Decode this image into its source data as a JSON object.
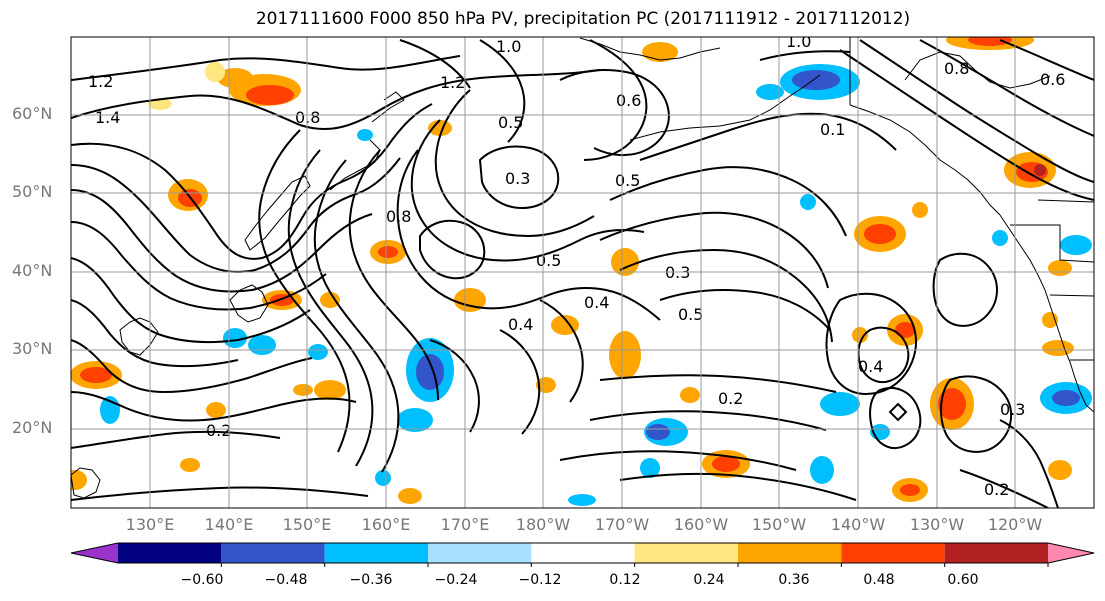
{
  "title": "2017111600 F000 850 hPa PV, precipitation PC (2017111912 - 2017112012)",
  "lat_labels": [
    "60°N",
    "50°N",
    "40°N",
    "30°N",
    "20°N"
  ],
  "lon_labels": [
    "130°E",
    "140°E",
    "150°E",
    "160°E",
    "170°E",
    "180°W",
    "170°W",
    "160°W",
    "150°W",
    "140°W",
    "130°W",
    "120°W"
  ],
  "colorbar": {
    "ticks": [
      "−0.60",
      "−0.48",
      "−0.36",
      "−0.24",
      "−0.12",
      "0.12",
      "0.24",
      "0.36",
      "0.48",
      "0.60"
    ],
    "colors": [
      "#9933cc",
      "#000080",
      "#3355cc",
      "#00bfff",
      "#aae0ff",
      "#ffffff",
      "#ffe680",
      "#ffa500",
      "#ff4000",
      "#b22222",
      "#ff88b0"
    ]
  },
  "contour_labels": [
    "1.0",
    "1.0",
    "1.2",
    "1.2",
    "1.4",
    "0.8",
    "0.8",
    "0.6",
    "0.5",
    "0.5",
    "0.5",
    "0.5",
    "0.4",
    "0.4",
    "0.4",
    "0.3",
    "0.3",
    "0.3",
    "0.2",
    "0.2",
    "0.2",
    "0.1",
    "0.6",
    "0.8"
  ],
  "map": {
    "contour_color": "#000000",
    "coast_color": "#000000",
    "grid_color": "#999999"
  }
}
